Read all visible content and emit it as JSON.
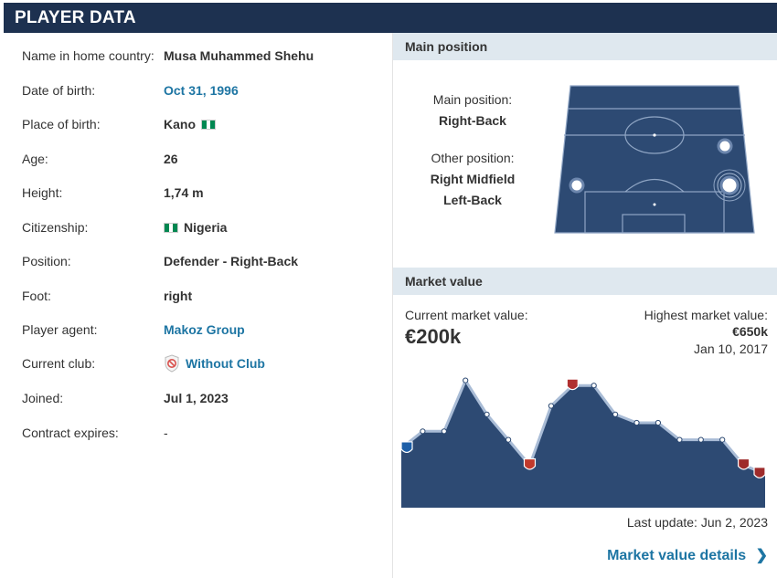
{
  "header": {
    "title": "PLAYER DATA"
  },
  "player": {
    "rows": [
      {
        "label": "Name in home country:",
        "value": "Musa Muhammed Shehu"
      },
      {
        "label": "Date of birth:",
        "value": "Oct 31, 1996"
      },
      {
        "label": "Place of birth:",
        "value": "Kano"
      },
      {
        "label": "Age:",
        "value": "26"
      },
      {
        "label": "Height:",
        "value": "1,74 m"
      },
      {
        "label": "Citizenship:",
        "value": "Nigeria"
      },
      {
        "label": "Position:",
        "value": "Defender - Right-Back"
      },
      {
        "label": "Foot:",
        "value": "right"
      },
      {
        "label": "Player agent:",
        "value": "Makoz Group"
      },
      {
        "label": "Current club:",
        "value": "Without Club"
      },
      {
        "label": "Joined:",
        "value": "Jul 1, 2023"
      },
      {
        "label": "Contract expires:",
        "value": "-"
      }
    ]
  },
  "position": {
    "title": "Main position",
    "main_label": "Main position:",
    "main_value": "Right-Back",
    "other_label": "Other position:",
    "other_values": [
      "Right Midfield",
      "Left-Back"
    ]
  },
  "market": {
    "title": "Market value",
    "current_label": "Current market value:",
    "current_value": "€200k",
    "highest_label": "Highest market value:",
    "highest_value": "€650k",
    "highest_date": "Jan 10, 2017",
    "last_update": "Last update: Jun 2, 2023",
    "details_link": "Market value details",
    "chart_color": "#2d4a73",
    "chart_values": [
      0.35,
      0.45,
      0.45,
      0.75,
      0.55,
      0.4,
      0.25,
      0.6,
      0.72,
      0.72,
      0.55,
      0.5,
      0.5,
      0.4,
      0.4,
      0.4,
      0.25,
      0.2
    ],
    "club_badges": [
      "club-badge-blue",
      "club-badge-black-red",
      "club-badge-red",
      "club-badge-red",
      "club-badge-red"
    ]
  }
}
